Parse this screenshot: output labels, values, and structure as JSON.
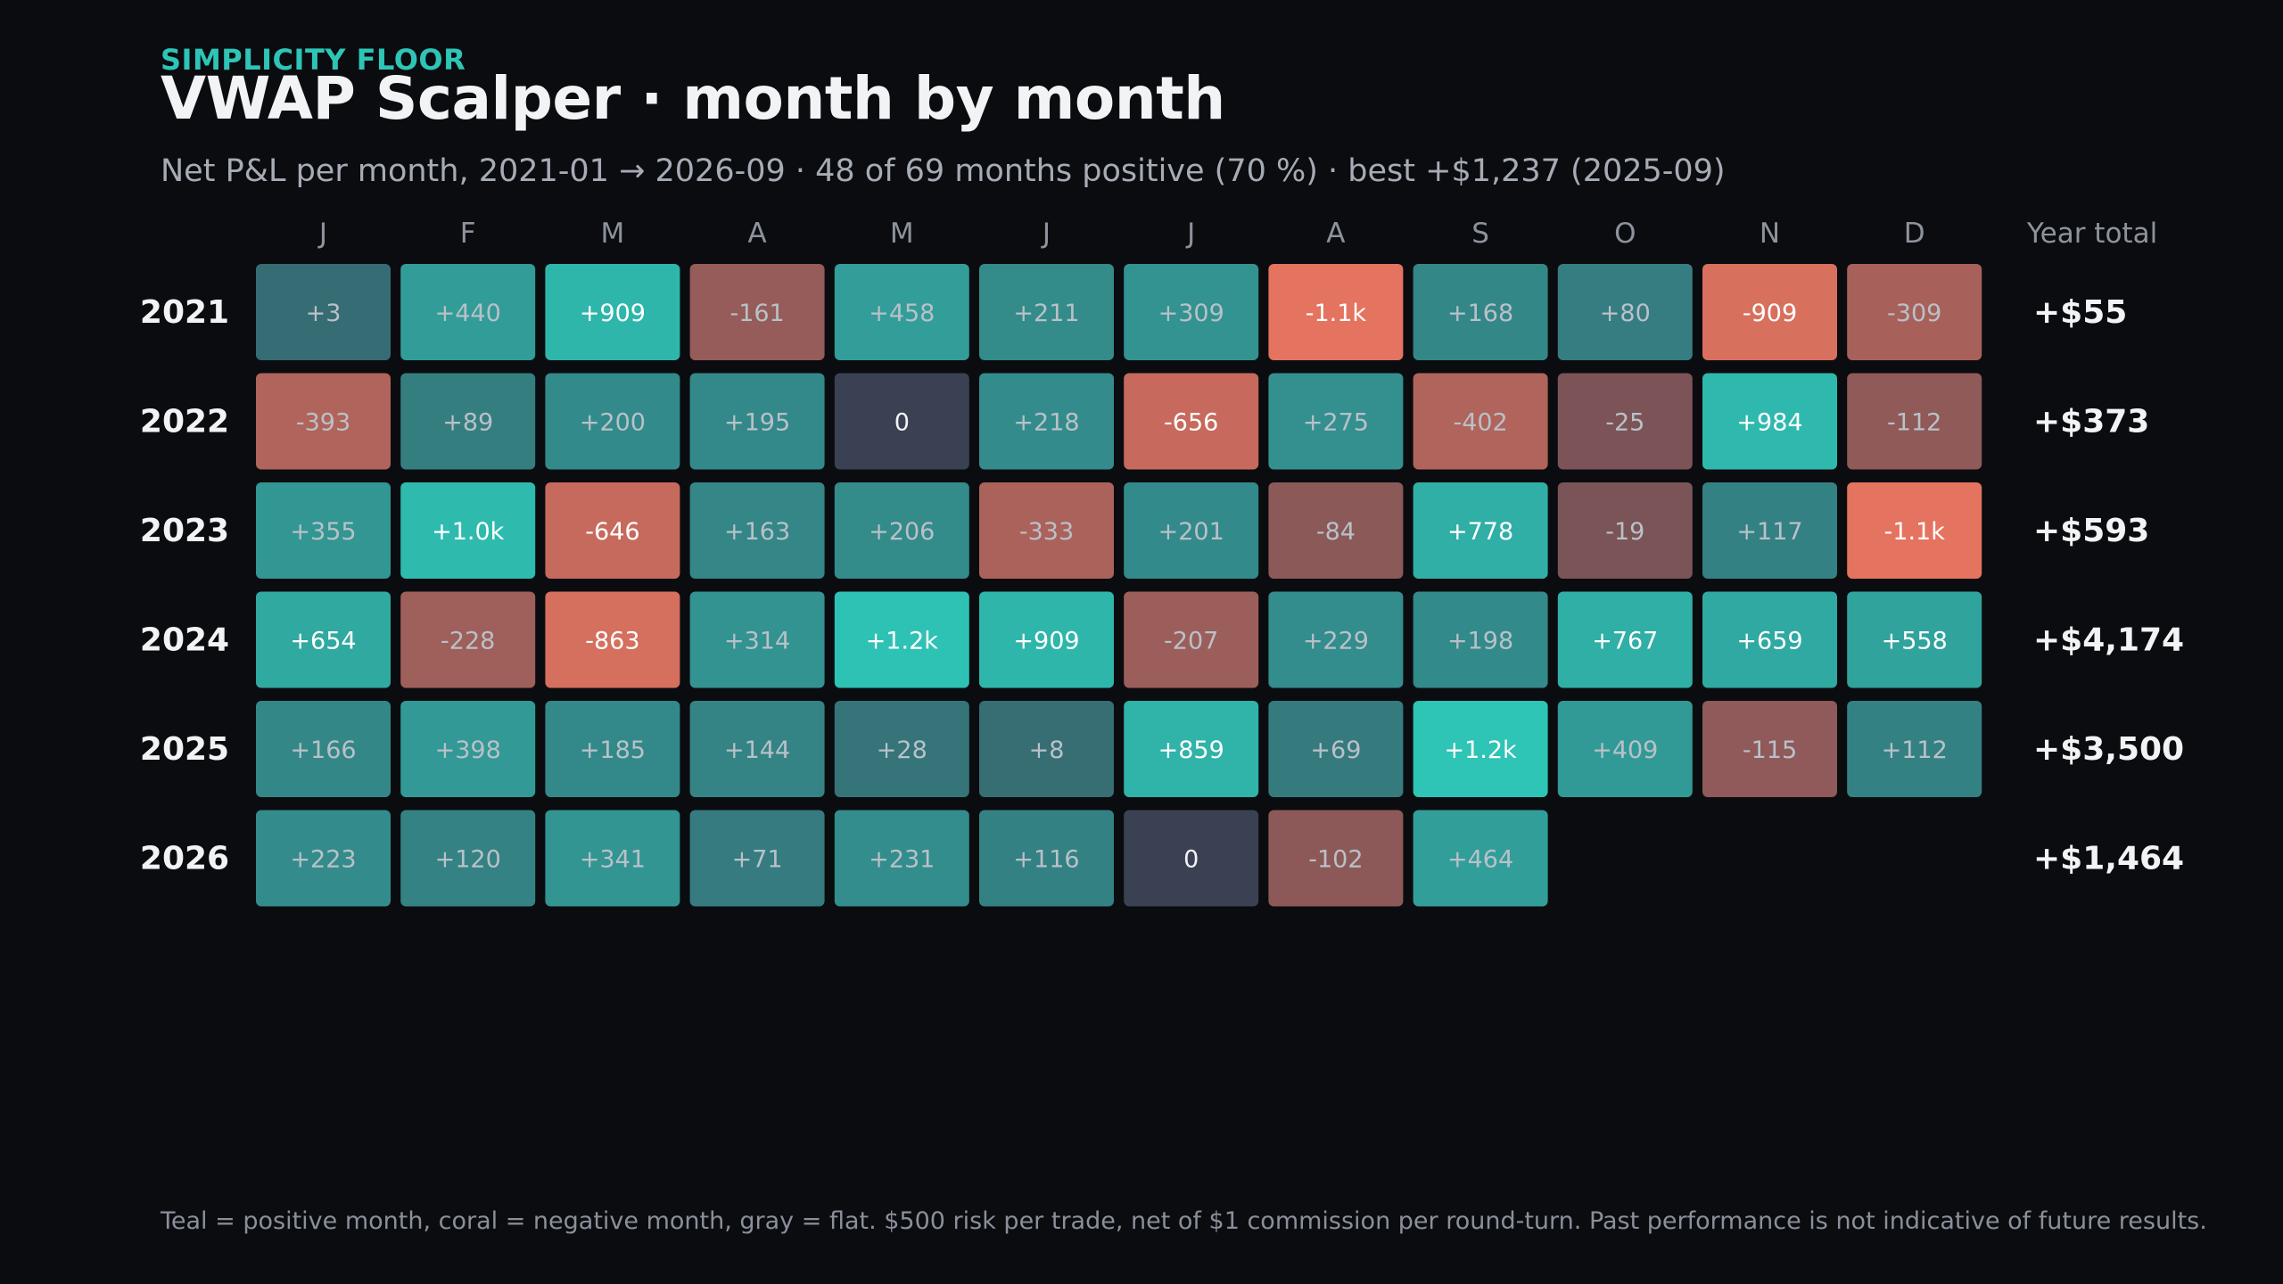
{
  "header": {
    "kicker": "SIMPLICITY FLOOR",
    "title": "VWAP Scalper · month by month",
    "subtitle": "Net P&L per month, 2021-01 → 2026-09 · 48 of 69 months positive (70 %) · best +$1,237 (2025-09)"
  },
  "chart_data": {
    "type": "heatmap",
    "columns": [
      "J",
      "F",
      "M",
      "A",
      "M",
      "J",
      "J",
      "A",
      "S",
      "O",
      "N",
      "D"
    ],
    "total_header": "Year total",
    "rows": [
      {
        "year": "2021",
        "values": [
          3,
          440,
          909,
          -161,
          458,
          211,
          309,
          -1100,
          168,
          80,
          -909,
          -309
        ],
        "labels": [
          "+3",
          "+440",
          "+909",
          "-161",
          "+458",
          "+211",
          "+309",
          "-1.1k",
          "+168",
          "+80",
          "-909",
          "-309"
        ],
        "total": "+$55"
      },
      {
        "year": "2022",
        "values": [
          -393,
          89,
          200,
          195,
          0,
          218,
          -656,
          275,
          -402,
          -25,
          984,
          -112
        ],
        "labels": [
          "-393",
          "+89",
          "+200",
          "+195",
          "0",
          "+218",
          "-656",
          "+275",
          "-402",
          "-25",
          "+984",
          "-112"
        ],
        "total": "+$373"
      },
      {
        "year": "2023",
        "values": [
          355,
          1000,
          -646,
          163,
          206,
          -333,
          201,
          -84,
          778,
          -19,
          117,
          -1100
        ],
        "labels": [
          "+355",
          "+1.0k",
          "-646",
          "+163",
          "+206",
          "-333",
          "+201",
          "-84",
          "+778",
          "-19",
          "+117",
          "-1.1k"
        ],
        "total": "+$593"
      },
      {
        "year": "2024",
        "values": [
          654,
          -228,
          -863,
          314,
          1200,
          909,
          -207,
          229,
          198,
          767,
          659,
          558
        ],
        "labels": [
          "+654",
          "-228",
          "-863",
          "+314",
          "+1.2k",
          "+909",
          "-207",
          "+229",
          "+198",
          "+767",
          "+659",
          "+558"
        ],
        "total": "+$4,174"
      },
      {
        "year": "2025",
        "values": [
          166,
          398,
          185,
          144,
          28,
          8,
          859,
          69,
          1237,
          409,
          -115,
          112
        ],
        "labels": [
          "+166",
          "+398",
          "+185",
          "+144",
          "+28",
          "+8",
          "+859",
          "+69",
          "+1.2k",
          "+409",
          "-115",
          "+112"
        ],
        "total": "+$3,500"
      },
      {
        "year": "2026",
        "values": [
          223,
          120,
          341,
          71,
          231,
          116,
          0,
          -102,
          464,
          null,
          null,
          null
        ],
        "labels": [
          "+223",
          "+120",
          "+341",
          "+71",
          "+231",
          "+116",
          "0",
          "-102",
          "+464",
          "",
          "",
          ""
        ],
        "total": "+$1,464"
      }
    ],
    "colors": {
      "positive": "#2ec4b6",
      "negative": "#e4735f",
      "flat": "#3a4152"
    }
  },
  "footnote": "Teal = positive month, coral = negative month, gray = flat. $500 risk per trade, net of $1 commission per round-turn. Past performance is not indicative of future results."
}
